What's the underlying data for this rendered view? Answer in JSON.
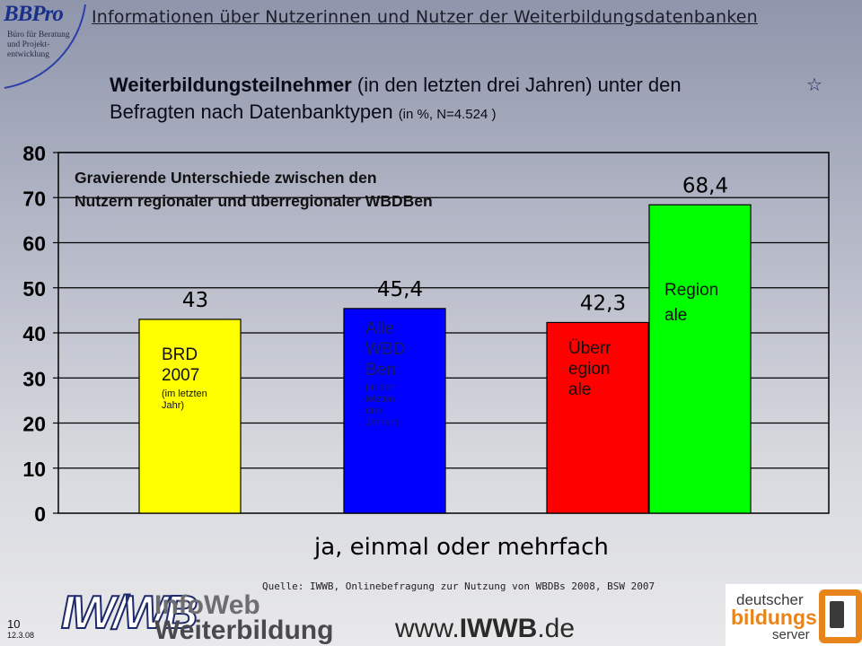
{
  "header": {
    "title": "Informationen über Nutzerinnen und Nutzer der Weiterbildungsdatenbanken",
    "logo_name": "BBPro",
    "logo_subtitle": [
      "Büro für Beratung",
      "und Projekt-",
      "entwicklung"
    ]
  },
  "slide": {
    "title_bold": "Weiterbildungsteilnehmer",
    "title_rest1": " (in den letzten drei Jahren) unter den",
    "title_line2": "Befragten nach Datenbanktypen ",
    "title_small": "(in %, N=4.524 )",
    "star_icon": "☆"
  },
  "chart_data": {
    "type": "bar",
    "categories": [
      "BRD 2007 (im letzten Jahr)",
      "Alle WBD Ben (in den letzten drei Jahren)",
      "Überregionale",
      "Regionale"
    ],
    "values": [
      43,
      45.4,
      42.3,
      68.4
    ],
    "value_labels": [
      "43",
      "45,4",
      "42,3",
      "68,4"
    ],
    "colors": [
      "#ffff00",
      "#0000ff",
      "#ff0000",
      "#00ff00"
    ],
    "ylim": [
      0,
      80
    ],
    "yticks": [
      "0",
      "10",
      "20",
      "30",
      "40",
      "50",
      "60",
      "70",
      "80"
    ],
    "xlabel": "ja, einmal oder mehrfach",
    "grid": true,
    "annotation": [
      "Gravierende Unterschiede zwischen den",
      "Nutzern regionaler und überregionaler WBDBen"
    ],
    "bar_labels": [
      {
        "main": [
          "BRD",
          "2007"
        ],
        "sub": [
          "(im letzten",
          "Jahr)"
        ]
      },
      {
        "main": [
          "Alle",
          "WBD",
          "Ben"
        ],
        "sub": [
          "(in den",
          "letzten",
          "drei",
          "Jahren)"
        ]
      },
      {
        "main": [
          "Überr",
          "egion",
          "ale"
        ],
        "sub": []
      },
      {
        "main": [
          "Region",
          "ale"
        ],
        "sub": []
      }
    ]
  },
  "footer": {
    "source": "Quelle: IWWB, Onlinebefragung zur Nutzung von WBDBs 2008, BSW 2007",
    "page_number": "10",
    "date": "12.3.08",
    "logo_line1": "InfoWeb",
    "logo_line2": "Weiterbildung",
    "logo_mark": "IW/WB",
    "url_pre": "www.",
    "url_bold": "IWWB",
    "url_post": ".de",
    "partner_line1": "deutscher",
    "partner_line2": "bildungs",
    "partner_line3": "server"
  }
}
